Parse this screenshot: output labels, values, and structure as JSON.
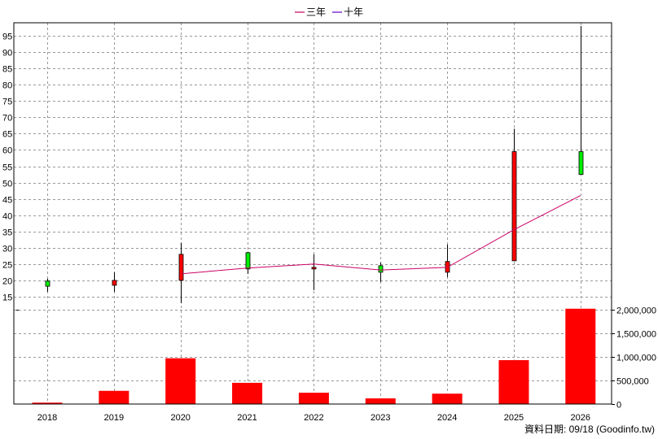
{
  "chart_data": {
    "type": "candlestick",
    "legend": [
      {
        "name": "三年",
        "color": "#cc0066"
      },
      {
        "name": "十年",
        "color": "#6600cc"
      }
    ],
    "categories": [
      "2018",
      "2019",
      "2020",
      "2021",
      "2022",
      "2023",
      "2024",
      "2025",
      "2026"
    ],
    "price_axis": {
      "ylim": [
        11,
        99
      ],
      "ticks": [
        "15",
        "20",
        "25",
        "30",
        "35",
        "40",
        "45",
        "50",
        "55",
        "60",
        "65",
        "70",
        "75",
        "80",
        "85",
        "90",
        "95"
      ]
    },
    "volume_axis": {
      "ylim": [
        0,
        2050000
      ],
      "ticks": [
        {
          "v": 0,
          "label": "0"
        },
        {
          "v": 500000,
          "label": "500,000"
        },
        {
          "v": 1000000,
          "label": "1,000,000"
        },
        {
          "v": 1500000,
          "label": "1,500,000"
        },
        {
          "v": 2000000,
          "label": "2,000,000"
        }
      ]
    },
    "candles": [
      {
        "year": "2018",
        "open": 18.2,
        "close": 19.8,
        "high": 20.5,
        "low": 16.5
      },
      {
        "year": "2019",
        "open": 20.0,
        "close": 18.5,
        "high": 22.5,
        "low": 16.5
      },
      {
        "year": "2020",
        "open": 28.0,
        "close": 20.0,
        "high": 31.5,
        "low": 13.0
      },
      {
        "year": "2021",
        "open": 23.5,
        "close": 28.5,
        "high": 28.8,
        "low": 22.0
      },
      {
        "year": "2022",
        "open": 24.0,
        "close": 23.5,
        "high": 28.0,
        "low": 17.0
      },
      {
        "year": "2023",
        "open": 22.5,
        "close": 24.5,
        "high": 25.5,
        "low": 19.5
      },
      {
        "year": "2024",
        "open": 25.8,
        "close": 22.5,
        "high": 31.0,
        "low": 21.0
      },
      {
        "year": "2025",
        "open": 59.5,
        "close": 26.0,
        "high": 66.5,
        "low": 26.0
      },
      {
        "year": "2026",
        "open": 52.5,
        "close": 59.5,
        "high": 98.0,
        "low": 52.5
      }
    ],
    "ma_three_year": [
      {
        "year": "2020",
        "value": 22.0
      },
      {
        "year": "2021",
        "value": 23.8
      },
      {
        "year": "2022",
        "value": 25.0
      },
      {
        "year": "2023",
        "value": 23.2
      },
      {
        "year": "2024",
        "value": 24.0
      },
      {
        "year": "2025",
        "value": 35.5
      },
      {
        "year": "2026",
        "value": 46.0
      }
    ],
    "volume": [
      {
        "year": "2018",
        "value": 30000
      },
      {
        "year": "2019",
        "value": 280000
      },
      {
        "year": "2020",
        "value": 970000
      },
      {
        "year": "2021",
        "value": 450000
      },
      {
        "year": "2022",
        "value": 240000
      },
      {
        "year": "2023",
        "value": 120000
      },
      {
        "year": "2024",
        "value": 220000
      },
      {
        "year": "2025",
        "value": 930000
      },
      {
        "year": "2026",
        "value": 2020000
      }
    ],
    "colors": {
      "up": "#00ee00",
      "down": "#ff0000",
      "wick": "#000000",
      "volume": "#ff0000",
      "grid": "#999999",
      "ma": "#cc0066"
    },
    "grid": true
  },
  "footer": "資料日期: 09/18  (Goodinfo.tw)"
}
